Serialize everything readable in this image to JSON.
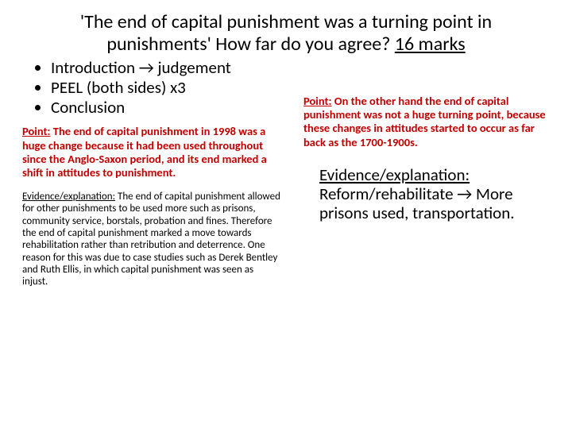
{
  "title": {
    "text": "'The end of capital punishment was a turning point in punishments' How far do you agree? ",
    "marks": "16 marks"
  },
  "structure": {
    "items": [
      "Introduction → judgement",
      "PEEL (both sides) x3",
      "Conclusion"
    ]
  },
  "left": {
    "point_label": "Point:",
    "point_text": " The end of capital punishment in 1998 was a huge change because it had been used throughout since the Anglo-Saxon period, and its end marked a shift in attitudes to punishment.",
    "evidence_label": "Evidence/explanation:",
    "evidence_text": " The end of capital punishment allowed for other punishments to be used more such as prisons, community service, borstals, probation and fines. Therefore the end of capital punishment marked a move towards rehabilitation rather than retribution and deterrence. One reason for this was due to case studies such as Derek Bentley and Ruth Ellis, in which capital punishment was seen as injust."
  },
  "right": {
    "point_label": "Point:",
    "point_text": " On the other hand the end of capital punishment was not a huge turning point, because these changes in attitudes started to occur as far back as the 1700-1900s.",
    "evidence_label": "Evidence/explanation:",
    "evidence_text": " Reform/rehabilitate → More prisons used, transportation."
  },
  "colors": {
    "red": "#c00000",
    "black": "#000000",
    "background": "#ffffff"
  }
}
